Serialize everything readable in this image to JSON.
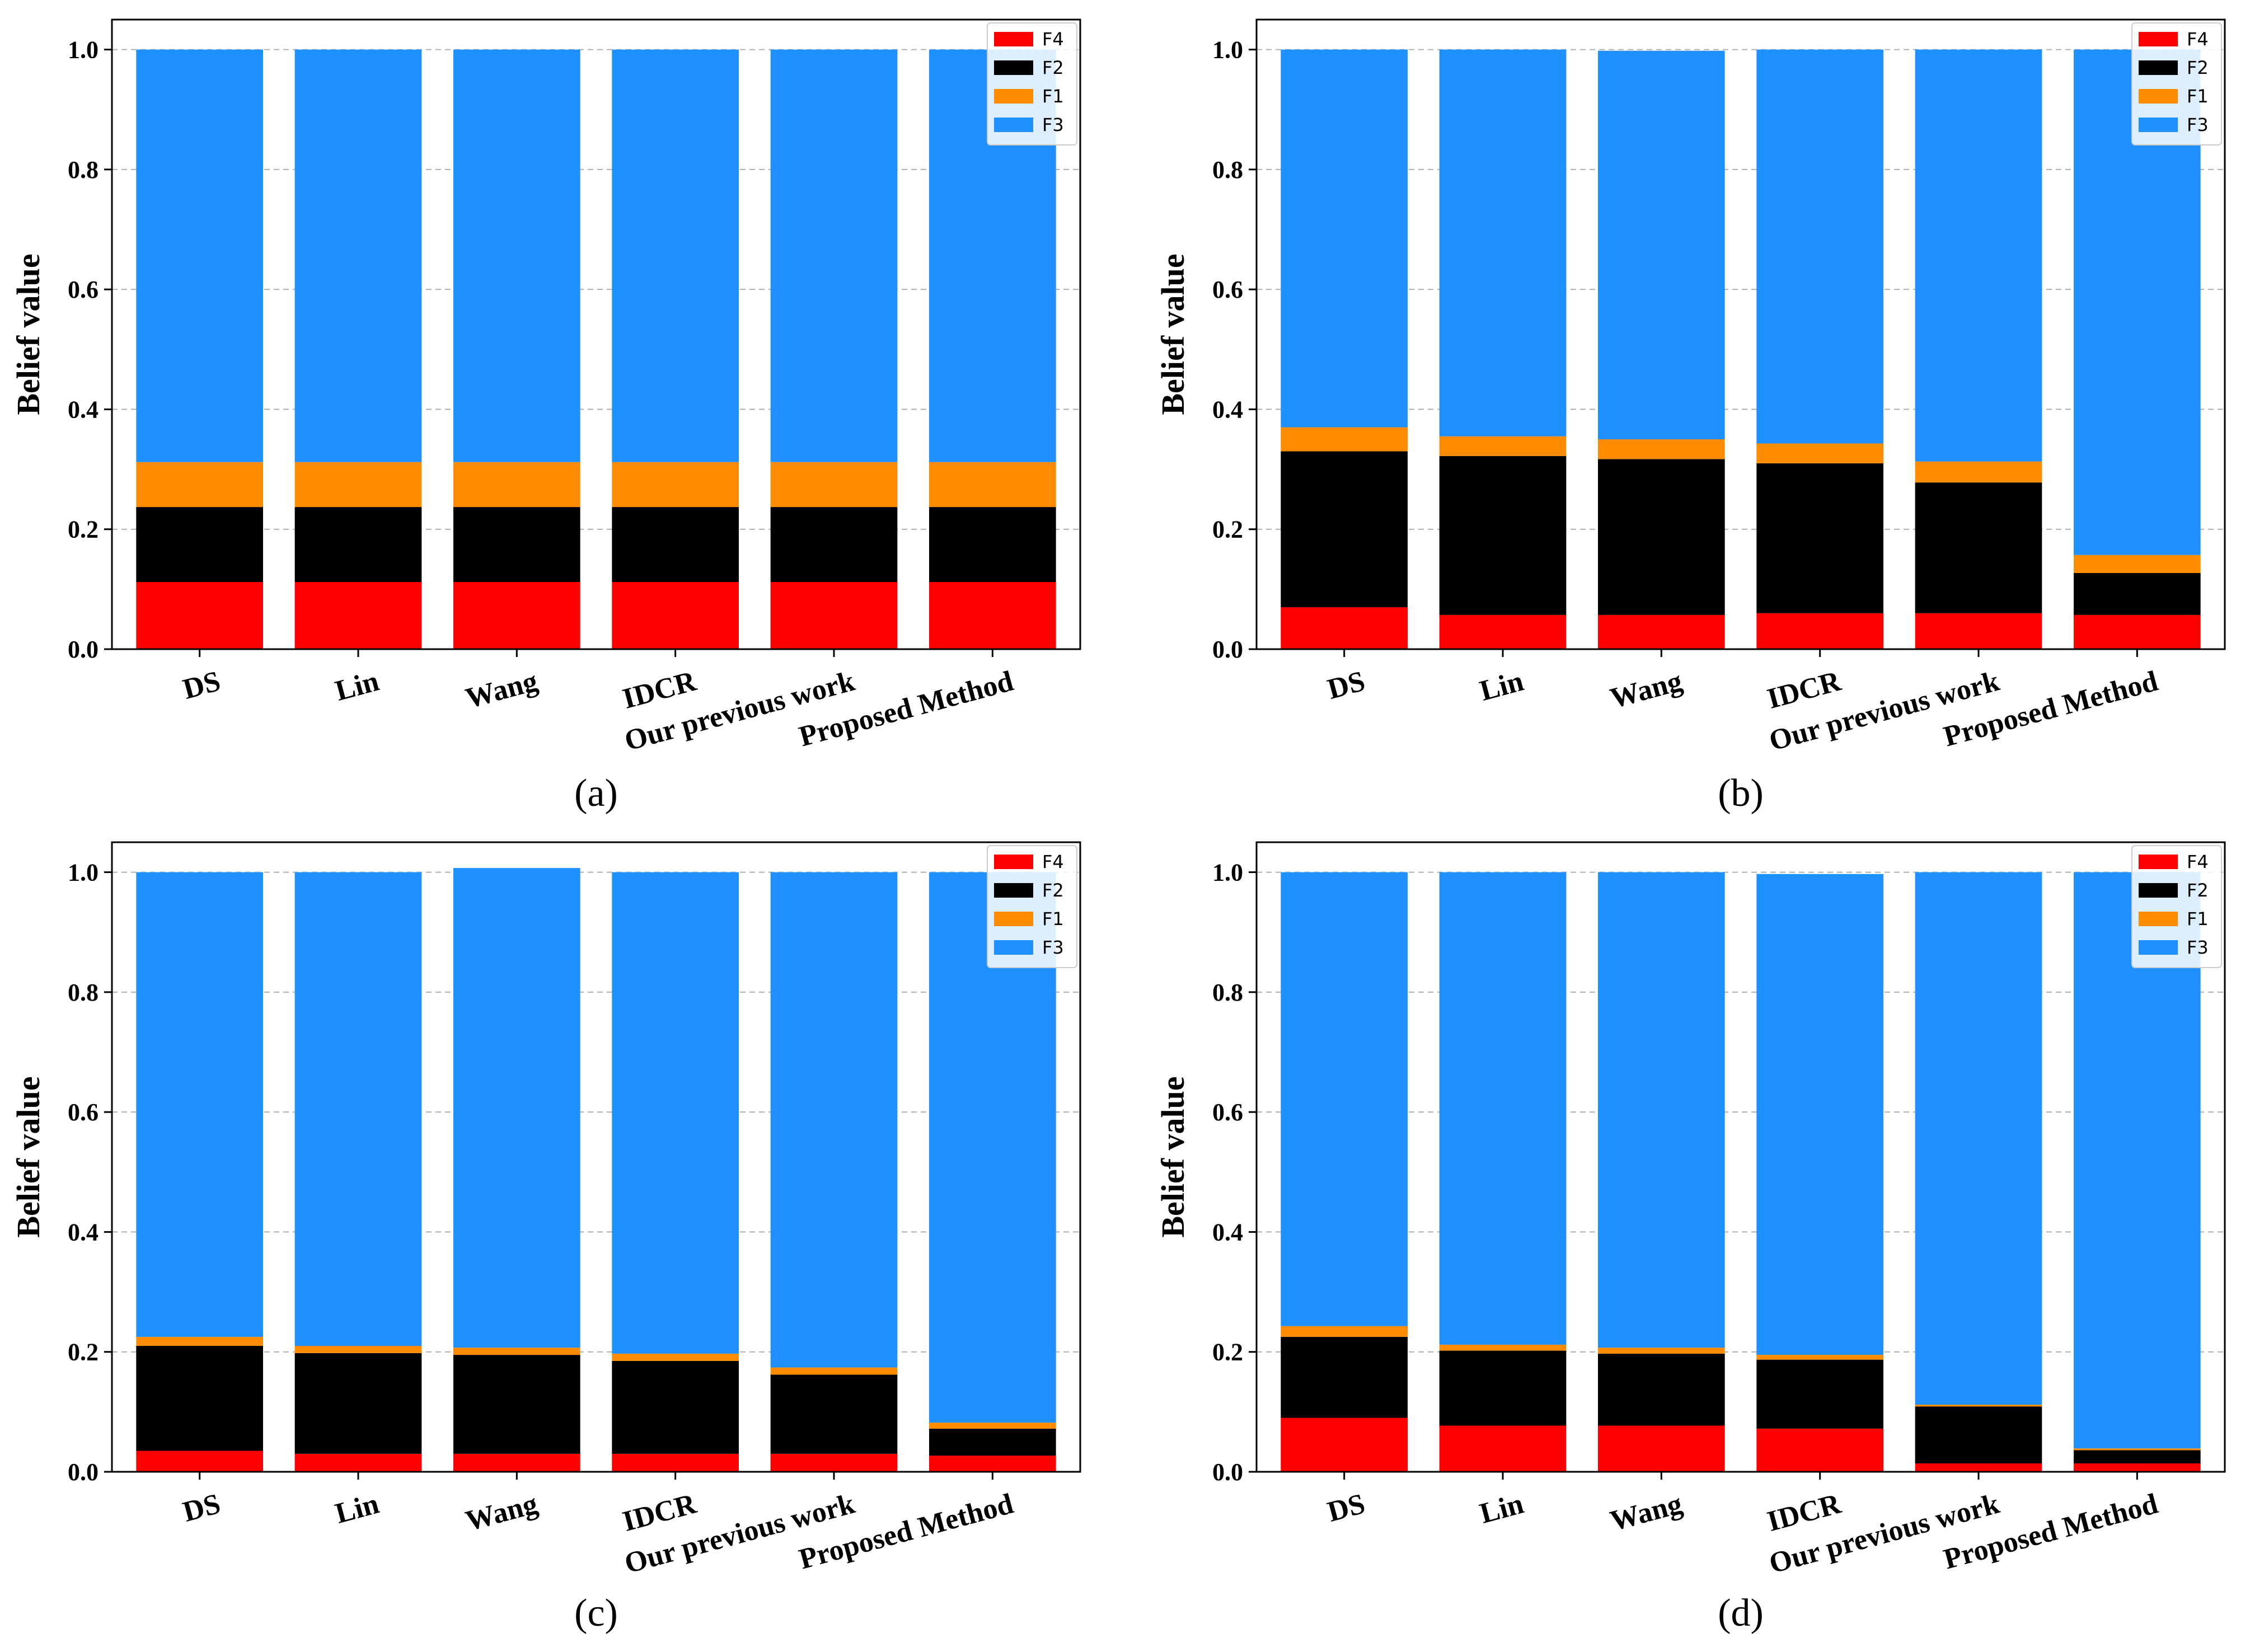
{
  "colors": {
    "F4": "#ff0000",
    "F2": "#000000",
    "F1": "#ff8c00",
    "F3": "#1e90ff",
    "grid": "#b0b0b0",
    "axis": "#000000"
  },
  "chart_data": [
    {
      "type": "bar",
      "stacked": true,
      "panel_label": "(a)",
      "ylabel": "Belief value",
      "ylim": [
        0,
        1.05
      ],
      "yticks": [
        "0.0",
        "0.2",
        "0.4",
        "0.6",
        "0.8",
        "1.0"
      ],
      "grid": true,
      "legend_position": "top-right",
      "categories": [
        "DS",
        "Lin",
        "Wang",
        "IDCR",
        "Our previous work",
        "Proposed Method"
      ],
      "series": [
        {
          "name": "F4",
          "values": [
            0.112,
            0.112,
            0.112,
            0.112,
            0.112,
            0.112
          ]
        },
        {
          "name": "F2",
          "values": [
            0.125,
            0.125,
            0.125,
            0.125,
            0.125,
            0.125
          ]
        },
        {
          "name": "F1",
          "values": [
            0.075,
            0.075,
            0.075,
            0.075,
            0.075,
            0.075
          ]
        },
        {
          "name": "F3",
          "values": [
            0.688,
            0.688,
            0.688,
            0.688,
            0.688,
            0.688
          ]
        }
      ]
    },
    {
      "type": "bar",
      "stacked": true,
      "panel_label": "(b)",
      "ylabel": "Belief value",
      "ylim": [
        0,
        1.05
      ],
      "yticks": [
        "0.0",
        "0.2",
        "0.4",
        "0.6",
        "0.8",
        "1.0"
      ],
      "grid": true,
      "legend_position": "top-right",
      "categories": [
        "DS",
        "Lin",
        "Wang",
        "IDCR",
        "Our previous work",
        "Proposed Method"
      ],
      "series": [
        {
          "name": "F4",
          "values": [
            0.07,
            0.057,
            0.057,
            0.06,
            0.06,
            0.057
          ]
        },
        {
          "name": "F2",
          "values": [
            0.26,
            0.265,
            0.26,
            0.25,
            0.218,
            0.07
          ]
        },
        {
          "name": "F1",
          "values": [
            0.04,
            0.033,
            0.033,
            0.033,
            0.035,
            0.03
          ]
        },
        {
          "name": "F3",
          "values": [
            0.63,
            0.645,
            0.648,
            0.657,
            0.687,
            0.843
          ]
        }
      ]
    },
    {
      "type": "bar",
      "stacked": true,
      "panel_label": "(c)",
      "ylabel": "Belief value",
      "ylim": [
        0,
        1.05
      ],
      "yticks": [
        "0.0",
        "0.2",
        "0.4",
        "0.6",
        "0.8",
        "1.0"
      ],
      "grid": true,
      "legend_position": "top-right",
      "categories": [
        "DS",
        "Lin",
        "Wang",
        "IDCR",
        "Our previous work",
        "Proposed Method"
      ],
      "series": [
        {
          "name": "F4",
          "values": [
            0.035,
            0.03,
            0.03,
            0.03,
            0.03,
            0.027
          ]
        },
        {
          "name": "F2",
          "values": [
            0.175,
            0.168,
            0.165,
            0.155,
            0.132,
            0.045
          ]
        },
        {
          "name": "F1",
          "values": [
            0.015,
            0.012,
            0.012,
            0.012,
            0.012,
            0.01
          ]
        },
        {
          "name": "F3",
          "values": [
            0.775,
            0.79,
            0.8,
            0.803,
            0.826,
            0.918
          ]
        }
      ]
    },
    {
      "type": "bar",
      "stacked": true,
      "panel_label": "(d)",
      "ylabel": "Belief value",
      "ylim": [
        0,
        1.05
      ],
      "yticks": [
        "0.0",
        "0.2",
        "0.4",
        "0.6",
        "0.8",
        "1.0"
      ],
      "grid": true,
      "legend_position": "top-right",
      "categories": [
        "DS",
        "Lin",
        "Wang",
        "IDCR",
        "Our previous work",
        "Proposed Method"
      ],
      "series": [
        {
          "name": "F4",
          "values": [
            0.09,
            0.077,
            0.077,
            0.072,
            0.014,
            0.014
          ]
        },
        {
          "name": "F2",
          "values": [
            0.135,
            0.125,
            0.12,
            0.115,
            0.095,
            0.022
          ]
        },
        {
          "name": "F1",
          "values": [
            0.018,
            0.01,
            0.01,
            0.008,
            0.003,
            0.003
          ]
        },
        {
          "name": "F3",
          "values": [
            0.757,
            0.788,
            0.793,
            0.802,
            0.888,
            0.961
          ]
        }
      ]
    }
  ]
}
